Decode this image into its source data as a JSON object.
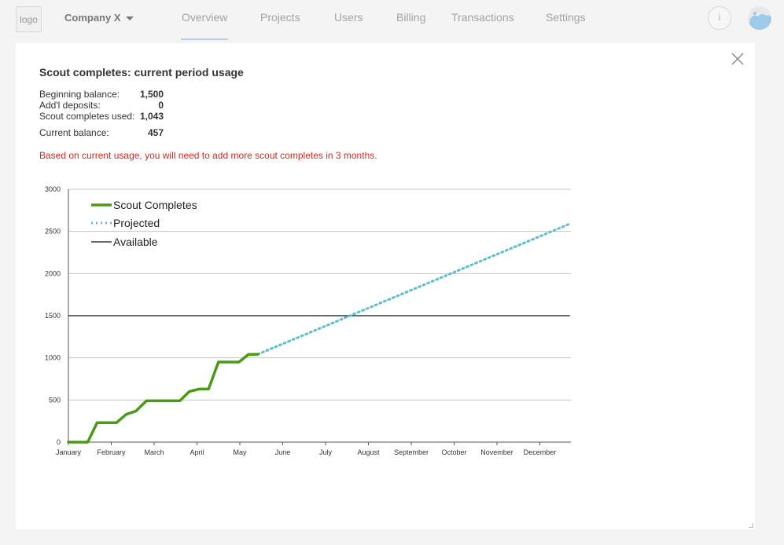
{
  "header": {
    "logo_text": "logo",
    "company_name": "Company X",
    "nav": [
      {
        "label": "Overview",
        "active": true
      },
      {
        "label": "Projects",
        "active": false
      },
      {
        "label": "Users",
        "active": false
      },
      {
        "label": "Billing",
        "active": false
      },
      {
        "label": "Transactions",
        "active": false
      },
      {
        "label": "Settings",
        "active": false
      }
    ],
    "info_label": "i",
    "accent_color": "#b5cfe8"
  },
  "panel": {
    "title": "Scout completes: current period usage",
    "stats": [
      {
        "label": "Beginning balance:",
        "value": "1,500"
      },
      {
        "label": "Add'l deposits:",
        "value": "0"
      },
      {
        "label": "Scout completes used:",
        "value": "1,043"
      },
      {
        "label": "Current balance:",
        "value": "457"
      }
    ],
    "warning": "Based on current usage, you will need to add more scout completes in 3 months.",
    "warning_color": "#cc2a22"
  },
  "chart_data": {
    "type": "line",
    "x_categories": [
      "January",
      "February",
      "March",
      "April",
      "May",
      "June",
      "July",
      "August",
      "September",
      "October",
      "November",
      "December"
    ],
    "ylim": [
      0,
      3000
    ],
    "y_ticks": [
      0,
      500,
      1000,
      1500,
      2000,
      2500,
      3000
    ],
    "grid": true,
    "legend_position": "top-left",
    "series": [
      {
        "name": "Scout Completes",
        "style": "solid",
        "color": "#4a9a16",
        "points": [
          [
            0,
            0
          ],
          [
            0.45,
            0
          ],
          [
            0.67,
            230
          ],
          [
            1.12,
            230
          ],
          [
            1.35,
            330
          ],
          [
            1.58,
            370
          ],
          [
            1.82,
            490
          ],
          [
            2.6,
            490
          ],
          [
            2.82,
            600
          ],
          [
            3.05,
            630
          ],
          [
            3.27,
            630
          ],
          [
            3.5,
            950
          ],
          [
            3.98,
            950
          ],
          [
            4.2,
            1040
          ],
          [
            4.42,
            1043
          ]
        ]
      },
      {
        "name": "Projected",
        "style": "dotted",
        "color": "#5bc0cc",
        "points": [
          [
            4.42,
            1043
          ],
          [
            11.7,
            2590
          ]
        ]
      },
      {
        "name": "Available",
        "style": "solid",
        "color": "#111111",
        "points": [
          [
            0,
            1500
          ],
          [
            11.7,
            1500
          ]
        ]
      }
    ]
  }
}
